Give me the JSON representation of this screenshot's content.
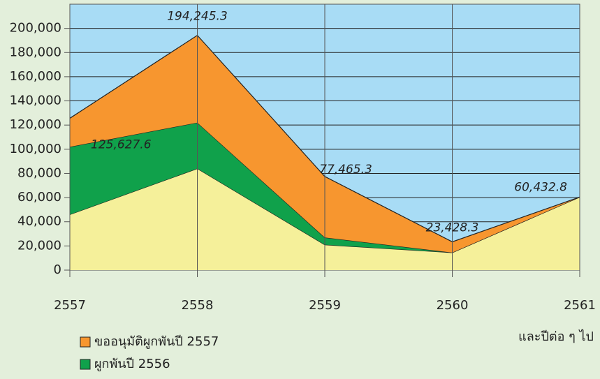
{
  "chart_data": {
    "type": "stacked_area",
    "categories": [
      "2557",
      "2558",
      "2559",
      "2560",
      "2561"
    ],
    "series": [
      {
        "color": "#f5f09a",
        "values": [
          46000,
          84000,
          21000,
          14500,
          60432.8
        ]
      },
      {
        "name": "ผูกพันปี 2556",
        "color": "#10a14b",
        "values": [
          56000,
          38000,
          6000,
          0,
          0
        ]
      },
      {
        "name": "ขออนุมัติผูกพันปี 2557",
        "color": "#f7962f",
        "values": [
          23627.6,
          72245.3,
          50465.3,
          8928.3,
          0
        ]
      }
    ],
    "annotations": [
      "125,627.6",
      "194,245.3",
      "77,465.3",
      "23,428.3",
      "60,432.8"
    ],
    "note": "และปีต่อ ๆ ไป",
    "ylim": [
      0,
      220000
    ],
    "yticks": [
      0,
      {
        "value": 20000,
        "label": "20,000"
      },
      {
        "value": 40000,
        "label": "40,000"
      },
      {
        "value": 60000,
        "label": "60,000"
      },
      {
        "value": 80000,
        "label": "80,000"
      },
      {
        "value": 100000,
        "label": "100,000"
      },
      {
        "value": 120000,
        "label": "120,000"
      },
      {
        "value": 140000,
        "label": "140,000"
      },
      {
        "value": 160000,
        "label": "160,000"
      },
      {
        "value": 180000,
        "label": "180,000"
      },
      {
        "value": 200000,
        "label": "200,000"
      }
    ],
    "grid": true,
    "plot_color": "#a8dcf5"
  }
}
